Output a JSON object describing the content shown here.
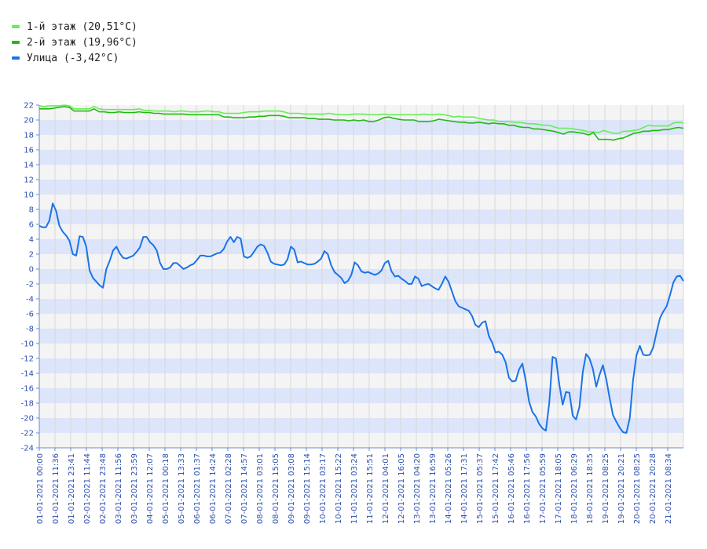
{
  "legend": [
    {
      "label": "1-й этаж (20,51°C)",
      "color": "#66ee55"
    },
    {
      "label": "2-й этаж (19,96°C)",
      "color": "#22bb11"
    },
    {
      "label": "Улица (-3,42°C)",
      "color": "#1a73e8"
    }
  ],
  "chart_data": {
    "type": "line",
    "ylim": [
      -24,
      22
    ],
    "yticks": [
      22,
      20,
      18,
      16,
      14,
      12,
      10,
      8,
      6,
      4,
      2,
      0,
      -2,
      -4,
      -6,
      -8,
      -10,
      -12,
      -14,
      -16,
      -18,
      -20,
      -22,
      -24
    ],
    "xlabels": [
      "01-01-2021 00:00",
      "01-01-2021 11:36",
      "01-01-2021 23:41",
      "02-01-2021 11:44",
      "02-01-2021 23:48",
      "03-01-2021 11:56",
      "03-01-2021 23:59",
      "04-01-2021 12:07",
      "05-01-2021 00:18",
      "05-01-2021 13:33",
      "06-01-2021 01:37",
      "06-01-2021 14:24",
      "07-01-2021 02:28",
      "07-01-2021 14:57",
      "08-01-2021 03:01",
      "08-01-2021 15:05",
      "09-01-2021 03:08",
      "09-01-2021 15:14",
      "10-01-2021 03:17",
      "10-01-2021 15:22",
      "11-01-2021 03:24",
      "11-01-2021 15:51",
      "12-01-2021 04:01",
      "12-01-2021 16:05",
      "13-01-2021 04:20",
      "13-01-2021 16:59",
      "14-01-2021 05:26",
      "14-01-2021 17:31",
      "15-01-2021 05:37",
      "15-01-2021 17:42",
      "16-01-2021 05:46",
      "16-01-2021 17:56",
      "17-01-2021 05:59",
      "17-01-2021 18:05",
      "18-01-2021 06:29",
      "18-01-2021 18:35",
      "19-01-2021 08:25",
      "19-01-2021 20:21",
      "20-01-2021 08:25",
      "20-01-2021 20:28",
      "21-01-2021 08:34"
    ],
    "series": [
      {
        "name": "1-й этаж (20,51°C)",
        "color": "#66ee55",
        "values": [
          21.9,
          21.8,
          21.9,
          21.9,
          21.9,
          22.0,
          21.9,
          21.5,
          21.5,
          21.5,
          21.5,
          21.8,
          21.5,
          21.4,
          21.4,
          21.4,
          21.4,
          21.4,
          21.4,
          21.4,
          21.5,
          21.3,
          21.3,
          21.2,
          21.2,
          21.2,
          21.2,
          21.1,
          21.2,
          21.2,
          21.1,
          21.1,
          21.1,
          21.2,
          21.2,
          21.1,
          21.1,
          20.9,
          20.9,
          20.9,
          20.9,
          21.0,
          21.1,
          21.1,
          21.1,
          21.2,
          21.2,
          21.2,
          21.2,
          21.1,
          20.9,
          20.9,
          20.9,
          20.8,
          20.8,
          20.8,
          20.8,
          20.8,
          20.9,
          20.8,
          20.7,
          20.7,
          20.7,
          20.8,
          20.8,
          20.8,
          20.7,
          20.7,
          20.7,
          20.8,
          20.7,
          20.7,
          20.7,
          20.7,
          20.7,
          20.7,
          20.7,
          20.8,
          20.7,
          20.7,
          20.8,
          20.7,
          20.6,
          20.4,
          20.5,
          20.4,
          20.4,
          20.4,
          20.2,
          20.1,
          20.0,
          20.0,
          19.8,
          19.8,
          19.8,
          19.7,
          19.7,
          19.6,
          19.5,
          19.5,
          19.4,
          19.3,
          19.3,
          19.1,
          18.9,
          18.9,
          18.9,
          18.8,
          18.7,
          18.6,
          18.4,
          18.4,
          18.3,
          18.6,
          18.4,
          18.2,
          18.2,
          18.5,
          18.5,
          18.6,
          18.7,
          19.0,
          19.3,
          19.2,
          19.2,
          19.2,
          19.2,
          19.6,
          19.7,
          19.6
        ]
      },
      {
        "name": "2-й этаж (19,96°C)",
        "color": "#22bb11",
        "values": [
          21.5,
          21.5,
          21.5,
          21.6,
          21.7,
          21.8,
          21.7,
          21.2,
          21.2,
          21.2,
          21.2,
          21.5,
          21.1,
          21.1,
          21.0,
          21.0,
          21.1,
          21.0,
          21.0,
          21.0,
          21.1,
          21.0,
          21.0,
          20.9,
          20.9,
          20.8,
          20.8,
          20.8,
          20.8,
          20.8,
          20.7,
          20.7,
          20.7,
          20.7,
          20.7,
          20.7,
          20.7,
          20.4,
          20.4,
          20.3,
          20.3,
          20.3,
          20.4,
          20.4,
          20.5,
          20.5,
          20.6,
          20.6,
          20.6,
          20.5,
          20.3,
          20.3,
          20.3,
          20.3,
          20.2,
          20.2,
          20.1,
          20.1,
          20.1,
          20.0,
          20.0,
          20.0,
          19.9,
          20.0,
          19.9,
          20.0,
          19.8,
          19.8,
          20.0,
          20.3,
          20.4,
          20.2,
          20.1,
          20.0,
          20.0,
          20.0,
          19.8,
          19.8,
          19.8,
          19.9,
          20.1,
          20.0,
          19.9,
          19.8,
          19.7,
          19.7,
          19.6,
          19.6,
          19.7,
          19.6,
          19.5,
          19.6,
          19.5,
          19.5,
          19.3,
          19.3,
          19.1,
          19.0,
          19.0,
          18.8,
          18.8,
          18.7,
          18.6,
          18.5,
          18.3,
          18.1,
          18.4,
          18.4,
          18.3,
          18.2,
          18.0,
          18.3,
          17.4,
          17.4,
          17.4,
          17.3,
          17.5,
          17.6,
          17.9,
          18.2,
          18.3,
          18.5,
          18.5,
          18.6,
          18.6,
          18.7,
          18.7,
          18.9,
          19.0,
          18.9
        ]
      },
      {
        "name": "Улица (-3,42°C)",
        "color": "#1a73e8",
        "values": [
          5.8,
          5.6,
          5.6,
          6.5,
          8.8,
          7.8,
          5.8,
          5.0,
          4.5,
          3.8,
          2.0,
          1.8,
          4.4,
          4.3,
          3.0,
          -0.2,
          -1.2,
          -1.7,
          -2.2,
          -2.5,
          0.0,
          1.1,
          2.5,
          3.0,
          2.1,
          1.5,
          1.4,
          1.6,
          1.8,
          2.3,
          2.9,
          4.3,
          4.3,
          3.6,
          3.2,
          2.5,
          0.8,
          0.0,
          0.0,
          0.2,
          0.8,
          0.8,
          0.4,
          0.0,
          0.2,
          0.5,
          0.7,
          1.2,
          1.8,
          1.8,
          1.7,
          1.7,
          1.9,
          2.1,
          2.2,
          2.7,
          3.7,
          4.3,
          3.6,
          4.3,
          4.1,
          1.7,
          1.5,
          1.7,
          2.3,
          3.0,
          3.3,
          3.1,
          2.2,
          1.0,
          0.7,
          0.6,
          0.5,
          0.6,
          1.3,
          3.0,
          2.6,
          0.9,
          1.0,
          0.8,
          0.6,
          0.6,
          0.7,
          1.0,
          1.4,
          2.4,
          2.0,
          0.5,
          -0.4,
          -0.8,
          -1.2,
          -1.9,
          -1.6,
          -0.8,
          0.9,
          0.5,
          -0.3,
          -0.5,
          -0.4,
          -0.6,
          -0.8,
          -0.6,
          -0.2,
          0.8,
          1.1,
          -0.3,
          -1.0,
          -0.9,
          -1.3,
          -1.6,
          -2.0,
          -2.0,
          -1.0,
          -1.3,
          -2.3,
          -2.1,
          -2.0,
          -2.3,
          -2.6,
          -2.8,
          -2.0,
          -1.0,
          -1.7,
          -3.0,
          -4.3,
          -5.0,
          -5.2,
          -5.4,
          -5.6,
          -6.3,
          -7.5,
          -7.8,
          -7.2,
          -7.0,
          -9.0,
          -9.9,
          -11.2,
          -11.1,
          -11.5,
          -12.5,
          -14.6,
          -15.1,
          -15.0,
          -13.5,
          -12.7,
          -15.0,
          -17.8,
          -19.2,
          -19.8,
          -20.8,
          -21.4,
          -21.7,
          -18.0,
          -11.8,
          -12.0,
          -15.5,
          -18.2,
          -16.5,
          -16.6,
          -19.7,
          -20.2,
          -18.5,
          -13.8,
          -11.4,
          -12.0,
          -13.4,
          -15.8,
          -14.2,
          -12.9,
          -14.8,
          -17.3,
          -19.6,
          -20.5,
          -21.3,
          -21.9,
          -22.0,
          -20.0,
          -14.9,
          -11.6,
          -10.3,
          -11.5,
          -11.6,
          -11.5,
          -10.5,
          -8.5,
          -6.6,
          -5.7,
          -5.0,
          -3.5,
          -1.8,
          -1.0,
          -0.9,
          -1.6
        ]
      }
    ]
  }
}
